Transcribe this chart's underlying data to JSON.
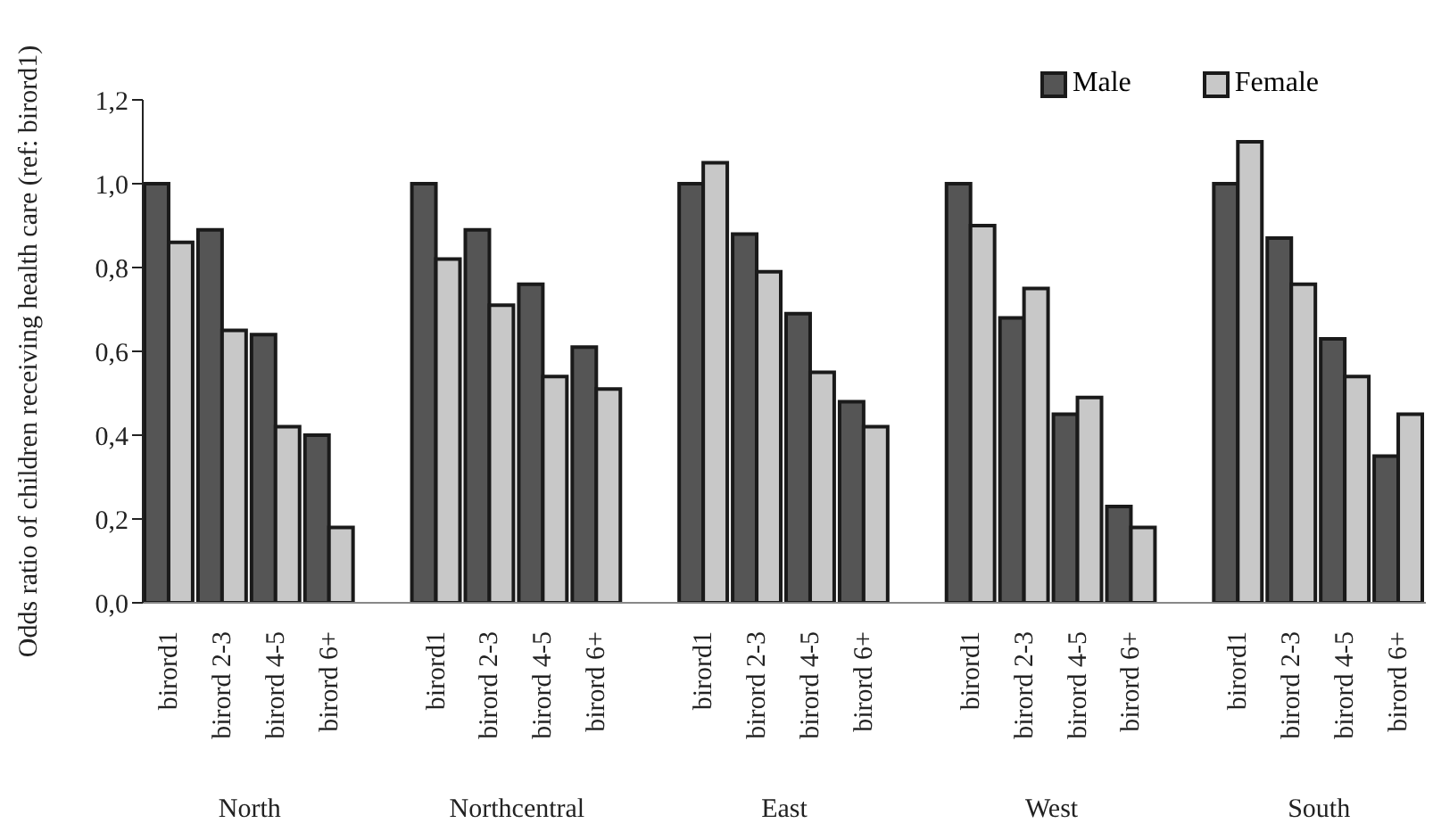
{
  "chart_data": {
    "type": "bar",
    "ylabel": "Odds ratio of children receiving health care (ref: birord1)",
    "categories": [
      "birord1",
      "birord 2-3",
      "birord 4-5",
      "birord 6+",
      "birord1",
      "birord 2-3",
      "birord 4-5",
      "birord 6+",
      "birord1",
      "birord 2-3",
      "birord 4-5",
      "birord 6+",
      "birord1",
      "birord 2-3",
      "birord 4-5",
      "birord 6+",
      "birord1",
      "birord 2-3",
      "birord 4-5",
      "birord 6+"
    ],
    "series": [
      {
        "name": "Male",
        "color": "#555555",
        "values": [
          1.0,
          0.89,
          0.64,
          0.4,
          1.0,
          0.89,
          0.76,
          0.61,
          1.0,
          0.88,
          0.69,
          0.48,
          1.0,
          0.68,
          0.45,
          0.23,
          1.0,
          0.87,
          0.63,
          0.35
        ]
      },
      {
        "name": "Female",
        "color": "#c8c8c8",
        "values": [
          0.86,
          0.65,
          0.42,
          0.18,
          0.82,
          0.71,
          0.54,
          0.51,
          1.05,
          0.79,
          0.55,
          0.42,
          0.9,
          0.75,
          0.49,
          0.18,
          1.1,
          0.76,
          0.54,
          0.45
        ]
      }
    ],
    "ylim": [
      0,
      1.2
    ],
    "yticks": [
      {
        "value": 0,
        "label": "0,0"
      },
      {
        "value": 0.2,
        "label": "0,2"
      },
      {
        "value": 0.4,
        "label": "0,4"
      },
      {
        "value": 0.6,
        "label": "0,6"
      },
      {
        "value": 0.8,
        "label": "0,8"
      },
      {
        "value": 1.0,
        "label": "1,0"
      },
      {
        "value": 1.2,
        "label": "1,2"
      }
    ],
    "annotations": [
      "North",
      "Northcentral",
      "East",
      "West",
      "South"
    ],
    "grid": false,
    "legend": "top right"
  }
}
